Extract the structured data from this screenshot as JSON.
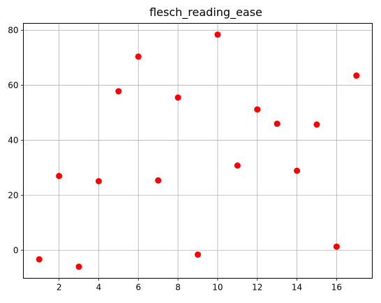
{
  "chart_data": {
    "type": "scatter",
    "title": "flesch_reading_ease",
    "xlabel": "",
    "ylabel": "",
    "xlim": [
      0.2,
      17.8
    ],
    "ylim": [
      -10.2,
      82.5
    ],
    "xticks": [
      2,
      4,
      6,
      8,
      10,
      12,
      14,
      16
    ],
    "yticks": [
      0,
      20,
      40,
      60,
      80
    ],
    "grid": true,
    "marker_color": "#ff0000",
    "x": [
      1,
      2,
      3,
      4,
      5,
      6,
      7,
      8,
      9,
      10,
      11,
      12,
      13,
      14,
      15,
      16,
      17
    ],
    "y": [
      -3.3,
      27.0,
      -6.0,
      25.1,
      57.8,
      70.4,
      25.4,
      55.5,
      -1.6,
      78.4,
      30.8,
      51.2,
      46.0,
      28.9,
      45.7,
      1.3,
      63.5
    ]
  }
}
